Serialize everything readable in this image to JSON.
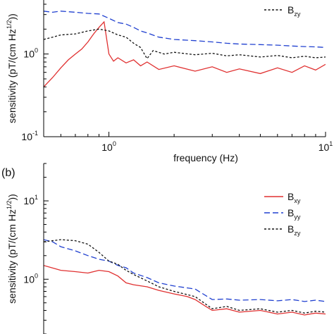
{
  "chart_data": [
    {
      "panel": "a",
      "panel_label": "",
      "type": "line",
      "xscale": "log",
      "yscale": "log",
      "xlim": [
        0.5,
        10
      ],
      "ylim": [
        0.1,
        4.5
      ],
      "xlabel": "frequency (Hz)",
      "ylabel": "sensitivity (pT/(cm Hz",
      "ylabel_sup": "1/2",
      "ylabel_tail": "))",
      "x_ticks": [
        {
          "value": 1,
          "base": "10",
          "exp": "0"
        },
        {
          "value": 10,
          "base": "10",
          "exp": "1"
        }
      ],
      "y_ticks": [
        {
          "value": 0.1,
          "base": "10",
          "exp": "-1"
        },
        {
          "value": 1,
          "base": "10",
          "exp": "0"
        }
      ],
      "legend": {
        "position": "top-right",
        "visible_entries": [
          "B_zy"
        ]
      },
      "series": [
        {
          "name": "B_xy",
          "base": "B",
          "sub": "xy",
          "color": "#e03030",
          "dash": "solid",
          "x": [
            0.5,
            0.55,
            0.6,
            0.65,
            0.7,
            0.75,
            0.8,
            0.85,
            0.9,
            0.95,
            1.0,
            1.05,
            1.1,
            1.2,
            1.3,
            1.4,
            1.5,
            1.7,
            2.0,
            2.5,
            3.0,
            3.5,
            4.0,
            5.0,
            6.0,
            7.0,
            8.0,
            9.0,
            10.0
          ],
          "y": [
            0.4,
            0.52,
            0.68,
            0.85,
            1.0,
            1.15,
            1.4,
            1.75,
            2.1,
            2.45,
            1.0,
            0.82,
            0.9,
            0.78,
            0.85,
            0.72,
            0.8,
            0.65,
            0.72,
            0.62,
            0.7,
            0.6,
            0.66,
            0.58,
            0.68,
            0.6,
            0.72,
            0.64,
            0.75
          ]
        },
        {
          "name": "B_yy",
          "base": "B",
          "sub": "yy",
          "color": "#2040d0",
          "dash": "dashed",
          "x": [
            0.5,
            0.55,
            0.6,
            0.7,
            0.8,
            0.9,
            1.0,
            1.1,
            1.2,
            1.3,
            1.4,
            1.5,
            1.7,
            2.0,
            2.5,
            3.0,
            3.5,
            4.0,
            5.0,
            6.0,
            7.0,
            8.0,
            9.0,
            10.0
          ],
          "y": [
            3.3,
            3.2,
            3.3,
            3.2,
            3.1,
            3.05,
            2.7,
            2.4,
            2.3,
            2.1,
            1.9,
            1.8,
            1.6,
            1.5,
            1.45,
            1.4,
            1.35,
            1.32,
            1.3,
            1.28,
            1.25,
            1.23,
            1.22,
            1.2
          ]
        },
        {
          "name": "B_zy",
          "base": "B",
          "sub": "zy",
          "color": "#111111",
          "dash": "dotted",
          "x": [
            0.5,
            0.55,
            0.6,
            0.7,
            0.8,
            0.9,
            1.0,
            1.1,
            1.2,
            1.3,
            1.4,
            1.5,
            1.6,
            1.8,
            2.0,
            2.5,
            3.0,
            3.5,
            4.0,
            5.0,
            6.0,
            7.0,
            8.0,
            9.0,
            10.0
          ],
          "y": [
            1.5,
            1.6,
            1.7,
            1.75,
            1.9,
            2.0,
            1.9,
            1.7,
            1.6,
            1.35,
            1.2,
            0.88,
            1.1,
            1.0,
            1.05,
            0.98,
            1.02,
            0.95,
            0.98,
            0.92,
            0.96,
            0.9,
            0.94,
            0.9,
            0.92
          ]
        }
      ]
    },
    {
      "panel": "b",
      "panel_label": "(b)",
      "type": "line",
      "xscale": "log",
      "yscale": "log",
      "xlim": [
        0.5,
        10
      ],
      "ylim": [
        0.2,
        30
      ],
      "xlabel": "",
      "ylabel": "sensitivity (pT/(cm Hz",
      "ylabel_sup": "1/2",
      "ylabel_tail": "))",
      "y_ticks": [
        {
          "value": 1,
          "base": "10",
          "exp": "0"
        },
        {
          "value": 10,
          "base": "10",
          "exp": "1"
        }
      ],
      "legend": {
        "position": "top-right",
        "visible_entries": [
          "B_xy",
          "B_yy",
          "B_zy"
        ]
      },
      "series": [
        {
          "name": "B_xy",
          "base": "B",
          "sub": "xy",
          "color": "#e03030",
          "dash": "solid",
          "x": [
            0.5,
            0.6,
            0.7,
            0.8,
            0.9,
            1.0,
            1.1,
            1.2,
            1.3,
            1.5,
            1.7,
            2.0,
            2.3,
            2.5,
            2.8,
            3.0,
            3.5,
            4.0,
            5.0,
            6.0,
            7.0,
            8.0,
            9.0,
            10.0
          ],
          "y": [
            1.5,
            1.3,
            1.25,
            1.2,
            1.3,
            1.25,
            1.1,
            0.9,
            0.85,
            0.8,
            0.72,
            0.65,
            0.6,
            0.55,
            0.45,
            0.4,
            0.42,
            0.38,
            0.4,
            0.36,
            0.38,
            0.35,
            0.37,
            0.36
          ]
        },
        {
          "name": "B_yy",
          "base": "B",
          "sub": "yy",
          "color": "#2040d0",
          "dash": "dashed",
          "x": [
            0.5,
            0.55,
            0.6,
            0.7,
            0.8,
            0.9,
            1.0,
            1.1,
            1.2,
            1.3,
            1.5,
            1.7,
            2.0,
            2.5,
            3.0,
            3.5,
            4.0,
            5.0,
            6.0,
            7.0,
            8.0,
            9.0,
            10.0
          ],
          "y": [
            3.2,
            3.0,
            2.6,
            2.3,
            2.0,
            1.8,
            1.7,
            1.5,
            1.4,
            1.2,
            1.05,
            0.9,
            0.82,
            0.75,
            0.55,
            0.56,
            0.54,
            0.55,
            0.53,
            0.55,
            0.52,
            0.54,
            0.52
          ]
        },
        {
          "name": "B_zy",
          "base": "B",
          "sub": "zy",
          "color": "#111111",
          "dash": "dotted",
          "x": [
            0.5,
            0.6,
            0.7,
            0.8,
            0.9,
            1.0,
            1.1,
            1.2,
            1.3,
            1.5,
            1.7,
            2.0,
            2.5,
            3.0,
            3.5,
            4.0,
            5.0,
            6.0,
            7.0,
            8.0,
            9.0,
            10.0
          ],
          "y": [
            3.0,
            3.2,
            3.1,
            2.8,
            2.2,
            1.7,
            1.55,
            1.3,
            1.15,
            0.95,
            0.8,
            0.7,
            0.6,
            0.42,
            0.45,
            0.4,
            0.42,
            0.38,
            0.4,
            0.37,
            0.39,
            0.38
          ]
        }
      ]
    }
  ]
}
